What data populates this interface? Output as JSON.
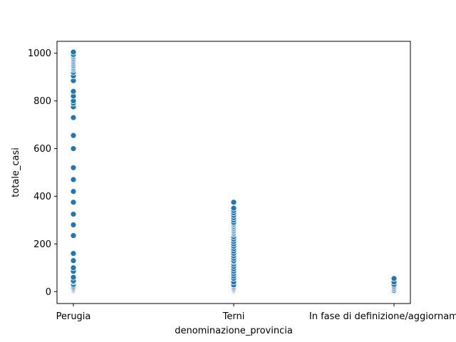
{
  "chart_data": {
    "type": "scatter",
    "xlabel": "denominazione_provincia",
    "ylabel": "totale_casi",
    "categories": [
      "Perugia",
      "Terni",
      "In fase di definizione/aggiornamento"
    ],
    "ylim": [
      -50,
      1050
    ],
    "yticks": [
      0,
      200,
      400,
      600,
      800,
      1000
    ],
    "grid": false,
    "marker_color": "#1f77b4",
    "series": [
      {
        "category": "Perugia",
        "values": [
          2,
          5,
          8,
          12,
          15,
          20,
          25,
          30,
          40,
          45,
          60,
          85,
          100,
          130,
          160,
          235,
          280,
          325,
          375,
          420,
          470,
          520,
          600,
          655,
          730,
          775,
          790,
          800,
          820,
          840,
          885,
          905,
          920,
          930,
          935,
          940,
          945,
          950,
          955,
          960,
          965,
          970,
          975,
          980,
          985,
          990,
          995,
          1005
        ]
      },
      {
        "category": "Terni",
        "values": [
          2,
          5,
          8,
          12,
          15,
          20,
          25,
          28,
          40,
          55,
          65,
          75,
          85,
          95,
          105,
          115,
          125,
          130,
          140,
          150,
          160,
          170,
          180,
          190,
          200,
          210,
          220,
          230,
          240,
          245,
          250,
          255,
          260,
          265,
          270,
          275,
          280,
          285,
          290,
          300,
          310,
          320,
          330,
          340,
          350,
          375
        ]
      },
      {
        "category": "In fase di definizione/aggiornamento",
        "values": [
          0,
          2,
          5,
          10,
          15,
          20,
          25,
          30,
          40,
          55
        ]
      }
    ]
  }
}
